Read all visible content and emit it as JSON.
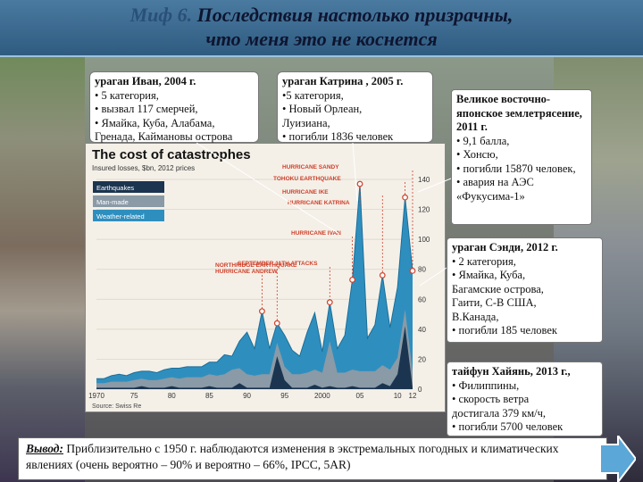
{
  "title": {
    "myth": "Миф 6.",
    "line1": "Последствия настолько призрачны,",
    "line2": "что меня это не коснется"
  },
  "boxes": {
    "ivan": {
      "head": "ураган Иван, 2004 г.",
      "lines": [
        "• 5 категория,",
        "• вызвал 117 смерчей,",
        "• Ямайка, Куба, Алабама,",
        "Гренада, Каймановы острова"
      ]
    },
    "katrina": {
      "head": "ураган Катрина , 2005 г.",
      "lines": [
        "•5 категория,",
        "• Новый Орлеан,",
        "Луизиана,",
        "• погибли 1836 человек"
      ]
    },
    "japan": {
      "head": "Великое восточно-японское землетрясение, 2011 г.",
      "lines": [
        "• 9,1 балла,",
        "• Хонсю,",
        "• погибли 15870 человек,",
        "• авария на АЭС «Фукусима-1»"
      ]
    },
    "sandy": {
      "head": "ураган Сэнди, 2012 г.",
      "lines": [
        "• 2 категория,",
        "• Ямайка, Куба,",
        "Багамские острова,",
        "Гаити, С-В США,",
        "В.Канада,",
        "• погибли 185 человек"
      ]
    },
    "haiyan": {
      "head": "тайфун Хайянь, 2013 г.,",
      "lines": [
        "• Филиппины,",
        "• скорость ветра",
        "достигала 379 км/ч,",
        "• погибли 5700 человек"
      ]
    }
  },
  "conclusion": {
    "label": "Вывод:",
    "text": " Приблизительно с 1950 г. наблюдаются изменения в экстремальных погодных и климатических явлениях (очень вероятно – 90% и вероятно – 66%, IPCC, 5AR)"
  },
  "chart": {
    "title": "The cost of catastrophes",
    "subtitle": "Insured losses, $bn, 2012 prices",
    "source": "Source: Swiss Re"
  },
  "chart_data": {
    "type": "area",
    "title": "The cost of catastrophes",
    "subtitle": "Insured losses, $bn, 2012 prices",
    "ylim": [
      0,
      140
    ],
    "yticks": [
      0,
      20,
      40,
      60,
      80,
      100,
      120,
      140
    ],
    "xticks": [
      "1970",
      "75",
      "80",
      "85",
      "90",
      "95",
      "2000",
      "05",
      "10",
      "12"
    ],
    "x": [
      1970,
      1971,
      1972,
      1973,
      1974,
      1975,
      1976,
      1977,
      1978,
      1979,
      1980,
      1981,
      1982,
      1983,
      1984,
      1985,
      1986,
      1987,
      1988,
      1989,
      1990,
      1991,
      1992,
      1993,
      1994,
      1995,
      1996,
      1997,
      1998,
      1999,
      2000,
      2001,
      2002,
      2003,
      2004,
      2005,
      2006,
      2007,
      2008,
      2009,
      2010,
      2011,
      2012
    ],
    "series": [
      {
        "name": "Earthquakes",
        "values": [
          1,
          1,
          1,
          1,
          1,
          1,
          2,
          1,
          1,
          1,
          2,
          1,
          1,
          1,
          1,
          2,
          1,
          1,
          1,
          4,
          1,
          1,
          1,
          1,
          22,
          6,
          1,
          1,
          1,
          3,
          1,
          2,
          1,
          1,
          2,
          1,
          1,
          1,
          4,
          2,
          10,
          42,
          1
        ]
      },
      {
        "name": "Man-made",
        "values": [
          3,
          3,
          4,
          4,
          4,
          5,
          5,
          5,
          5,
          6,
          6,
          6,
          7,
          7,
          7,
          8,
          8,
          9,
          12,
          10,
          9,
          8,
          9,
          9,
          9,
          9,
          9,
          9,
          10,
          10,
          10,
          30,
          10,
          10,
          11,
          11,
          11,
          11,
          12,
          11,
          11,
          11,
          11
        ]
      },
      {
        "name": "Weather-related",
        "values": [
          3,
          3,
          4,
          5,
          4,
          5,
          5,
          6,
          5,
          6,
          6,
          7,
          7,
          7,
          7,
          8,
          9,
          13,
          9,
          18,
          28,
          18,
          42,
          17,
          13,
          21,
          16,
          12,
          27,
          38,
          14,
          26,
          16,
          25,
          60,
          125,
          22,
          31,
          60,
          28,
          47,
          75,
          67
        ]
      }
    ],
    "annotations": [
      "HURRICANE SANDY",
      "TOHOKU EARTHQUAKE",
      "HURRICANE IKE",
      "HURRICANE KATRINA",
      "HURRICANE IVAN",
      "SEPTEMBER 11TH ATTACKS",
      "NORTHRIDGE EARTHQUAKE",
      "HURRICANE ANDREW"
    ],
    "colors": {
      "Earthquakes": "#1b3550",
      "Man-made": "#8a9aa6",
      "Weather-related": "#2e8fbf",
      "annotation": "#d0402a"
    },
    "legend": "top-left"
  }
}
